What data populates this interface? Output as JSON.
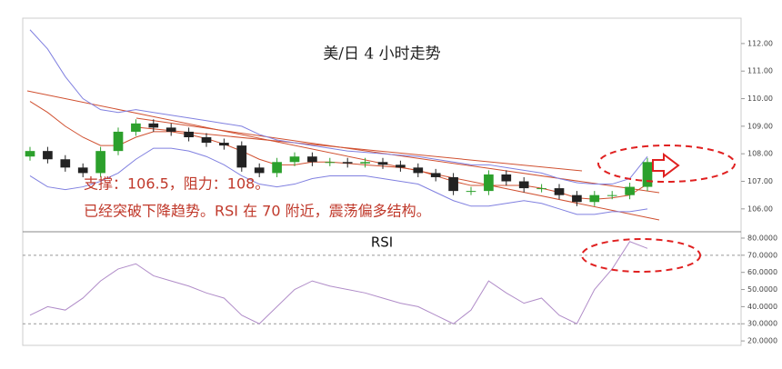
{
  "chart_data": {
    "type": "candlestick",
    "title": "美/日 4 小时走势",
    "annotations": [
      "支撑：106.5，阻力：108。",
      "已经突破下降趋势。RSI 在 70 附近，震荡偏多结构。"
    ],
    "ylim": [
      105.17,
      112.92
    ],
    "yticks": [
      {
        "value": 106,
        "label": "106.00"
      },
      {
        "value": 107,
        "label": "107.00"
      },
      {
        "value": 108,
        "label": "108.00"
      },
      {
        "value": 109,
        "label": "109.00"
      },
      {
        "value": 110,
        "label": "110.00"
      },
      {
        "value": 111,
        "label": "111.00"
      },
      {
        "value": 112,
        "label": "112.00"
      }
    ],
    "up_color": "#2ca02c",
    "down_color": "#222222",
    "candles": {
      "open": [
        107.9,
        108.1,
        107.8,
        107.5,
        107.3,
        108.1,
        108.8,
        109.1,
        108.95,
        108.8,
        108.6,
        108.4,
        108.3,
        107.5,
        107.3,
        107.7,
        107.9,
        107.7,
        107.7,
        107.65,
        107.7,
        107.6,
        107.5,
        107.3,
        107.15,
        106.65,
        106.65,
        107.25,
        107.0,
        106.75,
        106.75,
        106.5,
        106.25,
        106.5,
        106.5,
        106.8
      ],
      "high": [
        108.25,
        108.25,
        107.95,
        107.65,
        108.25,
        108.95,
        109.25,
        109.25,
        109.1,
        108.95,
        108.75,
        108.55,
        108.45,
        107.65,
        107.85,
        108.05,
        108.05,
        107.85,
        107.85,
        107.85,
        107.85,
        107.75,
        107.65,
        107.45,
        107.3,
        106.8,
        107.4,
        107.4,
        107.15,
        106.9,
        106.9,
        106.65,
        106.65,
        106.65,
        106.95,
        107.85
      ],
      "low": [
        107.75,
        107.65,
        107.35,
        107.15,
        107.15,
        107.95,
        108.65,
        108.8,
        108.65,
        108.45,
        108.25,
        108.15,
        107.35,
        107.15,
        107.15,
        107.55,
        107.55,
        107.55,
        107.5,
        107.5,
        107.45,
        107.35,
        107.15,
        107.0,
        106.5,
        106.5,
        106.5,
        106.85,
        106.6,
        106.6,
        106.35,
        106.1,
        106.1,
        106.35,
        106.35,
        106.65
      ],
      "close": [
        108.1,
        107.8,
        107.5,
        107.3,
        108.1,
        108.8,
        109.1,
        108.95,
        108.8,
        108.6,
        108.4,
        108.3,
        107.5,
        107.3,
        107.7,
        107.9,
        107.7,
        107.7,
        107.65,
        107.7,
        107.6,
        107.5,
        107.3,
        107.15,
        106.65,
        106.65,
        107.25,
        107.0,
        106.75,
        106.75,
        106.5,
        106.25,
        106.5,
        106.5,
        106.8,
        107.7
      ]
    },
    "bands": {
      "color": "#8080e0",
      "upper": [
        112.5,
        111.8,
        110.8,
        110.0,
        109.6,
        109.5,
        109.6,
        109.5,
        109.4,
        109.3,
        109.2,
        109.1,
        109.0,
        108.7,
        108.5,
        108.4,
        108.3,
        108.2,
        108.1,
        108.05,
        108.0,
        107.95,
        107.9,
        107.8,
        107.7,
        107.6,
        107.6,
        107.5,
        107.4,
        107.3,
        107.1,
        106.95,
        106.9,
        106.9,
        107.1,
        107.9
      ],
      "lower": [
        107.2,
        106.8,
        106.7,
        106.8,
        107.0,
        107.3,
        107.8,
        108.2,
        108.2,
        108.1,
        107.9,
        107.6,
        107.2,
        106.9,
        106.8,
        106.9,
        107.1,
        107.2,
        107.2,
        107.2,
        107.1,
        107.0,
        106.9,
        106.6,
        106.3,
        106.1,
        106.1,
        106.2,
        106.3,
        106.2,
        106.0,
        105.8,
        105.8,
        105.9,
        105.9,
        106.0
      ]
    },
    "ma": {
      "color": "#d05030",
      "values": [
        109.9,
        109.5,
        109.0,
        108.6,
        108.3,
        108.3,
        108.6,
        108.8,
        108.8,
        108.7,
        108.55,
        108.35,
        108.1,
        107.8,
        107.6,
        107.6,
        107.7,
        107.7,
        107.65,
        107.6,
        107.55,
        107.5,
        107.4,
        107.2,
        107.0,
        106.85,
        106.85,
        106.85,
        106.85,
        106.75,
        106.6,
        106.4,
        106.35,
        106.4,
        106.5,
        106.9
      ]
    },
    "rsi": {
      "title": "RSI",
      "color": "#b08cc8",
      "ylim": [
        17.4,
        83.7
      ],
      "yticks": [
        {
          "value": 20,
          "label": "20.0000"
        },
        {
          "value": 30,
          "label": "30.0000"
        },
        {
          "value": 40,
          "label": "40.0000"
        },
        {
          "value": 50,
          "label": "50.0000"
        },
        {
          "value": 60,
          "label": "60.0000"
        },
        {
          "value": 70,
          "label": "70.0000"
        },
        {
          "value": 80,
          "label": "80.0000"
        }
      ],
      "levels": [
        70,
        30
      ],
      "values": [
        35,
        40,
        38,
        45,
        55,
        62,
        65,
        58,
        55,
        52,
        48,
        45,
        35,
        30,
        40,
        50,
        55,
        52,
        50,
        48,
        45,
        42,
        40,
        35,
        30,
        38,
        55,
        48,
        42,
        45,
        35,
        30,
        50,
        62,
        78,
        74
      ]
    }
  }
}
